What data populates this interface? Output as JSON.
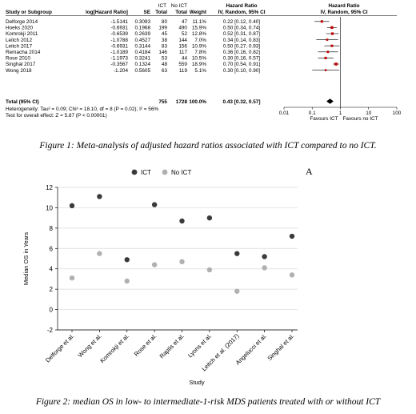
{
  "forest_plot": {
    "headers": {
      "group_top": "ICT",
      "group_top2": "No ICT",
      "hr_top": "Hazard Ratio",
      "hr_top2": "Hazard Ratio",
      "study": "Study or Subgroup",
      "loghr": "log[Hazard Ratio]",
      "se": "SE",
      "ict_total": "Total",
      "noict_total": "Total",
      "weight": "Weight",
      "hr_method": "IV, Random, 95% CI",
      "hr_method2": "IV, Random, 95% CI"
    },
    "rows": [
      {
        "study": "Delforge 2014",
        "loghr": "-1.5141",
        "se": "0.3093",
        "ict": "80",
        "noict": "47",
        "weight": "11.1%",
        "ci": "0.22 [0.12, 0.40]",
        "hr": 0.22,
        "lo": 0.12,
        "hi": 0.4,
        "w": 11.1
      },
      {
        "study": "Hoeks 2020",
        "loghr": "-0.6931",
        "se": "0.1968",
        "ict": "199",
        "noict": "490",
        "weight": "15.9%",
        "ci": "0.50 [0.34, 0.74]",
        "hr": 0.5,
        "lo": 0.34,
        "hi": 0.74,
        "w": 15.9
      },
      {
        "study": "Komrokji 2011",
        "loghr": "-0.6539",
        "se": "0.2639",
        "ict": "45",
        "noict": "52",
        "weight": "12.8%",
        "ci": "0.52 [0.31, 0.87]",
        "hr": 0.52,
        "lo": 0.31,
        "hi": 0.87,
        "w": 12.8
      },
      {
        "study": "Leitch 2012",
        "loghr": "-1.0788",
        "se": "0.4527",
        "ict": "38",
        "noict": "144",
        "weight": "7.0%",
        "ci": "0.34 [0.14, 0.83]",
        "hr": 0.34,
        "lo": 0.14,
        "hi": 0.83,
        "w": 7.0
      },
      {
        "study": "Leitch 2017",
        "loghr": "-0.6931",
        "se": "0.3144",
        "ict": "83",
        "noict": "156",
        "weight": "10.9%",
        "ci": "0.50 [0.27, 0.93]",
        "hr": 0.5,
        "lo": 0.27,
        "hi": 0.93,
        "w": 10.9
      },
      {
        "study": "Remacha 2014",
        "loghr": "-1.0189",
        "se": "0.4184",
        "ict": "146",
        "noict": "117",
        "weight": "7.8%",
        "ci": "0.36 [0.16, 0.82]",
        "hr": 0.36,
        "lo": 0.16,
        "hi": 0.82,
        "w": 7.8
      },
      {
        "study": "Rose 2010",
        "loghr": "-1.1973",
        "se": "0.3241",
        "ict": "53",
        "noict": "44",
        "weight": "10.5%",
        "ci": "0.30 [0.16, 0.57]",
        "hr": 0.3,
        "lo": 0.16,
        "hi": 0.57,
        "w": 10.5
      },
      {
        "study": "Singhal 2017",
        "loghr": "-0.3567",
        "se": "0.1324",
        "ict": "48",
        "noict": "559",
        "weight": "18.9%",
        "ci": "0.70 [0.54, 0.91]",
        "hr": 0.7,
        "lo": 0.54,
        "hi": 0.91,
        "w": 18.9
      },
      {
        "study": "Wong 2018",
        "loghr": "-1.204",
        "se": "0.5605",
        "ict": "63",
        "noict": "119",
        "weight": "5.1%",
        "ci": "0.30 [0.10, 0.90]",
        "hr": 0.3,
        "lo": 0.1,
        "hi": 0.9,
        "w": 5.1
      }
    ],
    "total": {
      "label": "Total (95% CI)",
      "ict": "755",
      "noict": "1728",
      "weight": "100.0%",
      "ci": "0.43 [0.32, 0.57]",
      "hr": 0.43,
      "lo": 0.32,
      "hi": 0.57
    },
    "heterogeneity": "Heterogeneity: Tau² = 0.09; Chi² = 18.10, df = 8 (P = 0.02); I² = 56%",
    "overall_effect": "Test for overall effect: Z = 5.87 (P < 0.00001)",
    "axis": {
      "ticks": [
        0.01,
        0.1,
        1,
        10,
        100
      ],
      "tick_labels": [
        "0.01",
        "0.1",
        "1",
        "10",
        "100"
      ],
      "left_label": "Favours ICT",
      "right_label": "Favours no ICT",
      "scale": "log"
    },
    "colors": {
      "square": "#c00000",
      "diamond": "#000000"
    }
  },
  "caption1": "Figure 1: Meta-analysis of adjusted hazard ratios associated with ICT compared to no ICT.",
  "panel_label": "A",
  "chart_data": {
    "type": "scatter",
    "xlabel": "Study",
    "ylabel": "Median OS in Years",
    "ylim": [
      -2,
      12
    ],
    "yticks": [
      -2,
      0,
      2,
      4,
      6,
      8,
      10,
      12
    ],
    "categories": [
      "Delforge et al.",
      "Wong et al.",
      "Komrokji et al.",
      "Rose et al.",
      "Raptis et al.",
      "Lyons et al.",
      "Leitch et al. (2017)",
      "Angelucci et al.",
      "Singhal et al."
    ],
    "series": [
      {
        "name": "ICT",
        "color": "#3a3a3a",
        "values": [
          10.2,
          11.1,
          4.9,
          10.3,
          8.7,
          9.0,
          5.5,
          5.2,
          7.2
        ]
      },
      {
        "name": "No ICT",
        "color": "#b0b0b0",
        "values": [
          3.1,
          5.5,
          2.8,
          4.4,
          4.7,
          3.9,
          1.8,
          4.1,
          3.4
        ]
      }
    ],
    "legend": "top"
  },
  "caption2": "Figure 2: median OS in low- to intermediate-1-risk MDS patients treated with or without ICT"
}
